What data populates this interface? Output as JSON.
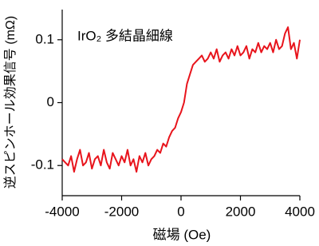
{
  "chart_data": {
    "type": "line",
    "annotation": "IrO₂ 多結晶細線",
    "xlabel": "磁場 (Oe)",
    "ylabel": "逆スピンホール効果信号 (mΩ)",
    "x": [
      -4000,
      -3900,
      -3800,
      -3700,
      -3600,
      -3500,
      -3400,
      -3300,
      -3200,
      -3100,
      -3000,
      -2900,
      -2800,
      -2700,
      -2600,
      -2500,
      -2400,
      -2300,
      -2200,
      -2100,
      -2000,
      -1900,
      -1800,
      -1700,
      -1600,
      -1500,
      -1400,
      -1300,
      -1200,
      -1100,
      -1000,
      -900,
      -800,
      -700,
      -600,
      -500,
      -400,
      -300,
      -200,
      -100,
      0,
      100,
      200,
      300,
      400,
      500,
      600,
      700,
      800,
      900,
      1000,
      1100,
      1200,
      1300,
      1400,
      1500,
      1600,
      1700,
      1800,
      1900,
      2000,
      2100,
      2200,
      2300,
      2400,
      2500,
      2600,
      2700,
      2800,
      2900,
      3000,
      3100,
      3200,
      3300,
      3400,
      3500,
      3600,
      3700,
      3800,
      3900,
      4000
    ],
    "series": [
      {
        "color": "#e8141c",
        "values": [
          -0.09,
          -0.095,
          -0.1,
          -0.085,
          -0.11,
          -0.09,
          -0.075,
          -0.1,
          -0.095,
          -0.08,
          -0.105,
          -0.09,
          -0.085,
          -0.1,
          -0.075,
          -0.095,
          -0.105,
          -0.08,
          -0.09,
          -0.1,
          -0.085,
          -0.095,
          -0.075,
          -0.1,
          -0.09,
          -0.11,
          -0.085,
          -0.095,
          -0.08,
          -0.1,
          -0.09,
          -0.085,
          -0.075,
          -0.08,
          -0.065,
          -0.07,
          -0.055,
          -0.045,
          -0.04,
          -0.025,
          -0.015,
          0.0,
          0.03,
          0.045,
          0.06,
          0.065,
          0.07,
          0.075,
          0.065,
          0.07,
          0.08,
          0.07,
          0.085,
          0.065,
          0.075,
          0.08,
          0.07,
          0.085,
          0.075,
          0.09,
          0.075,
          0.08,
          0.09,
          0.07,
          0.085,
          0.08,
          0.095,
          0.08,
          0.09,
          0.085,
          0.095,
          0.08,
          0.1,
          0.085,
          0.09,
          0.11,
          0.12,
          0.085,
          0.095,
          0.07,
          0.1
        ]
      }
    ],
    "xlim": [
      -4000,
      4000
    ],
    "xticks": [
      -4000,
      -2000,
      0,
      2000,
      4000
    ],
    "ylim": [
      -0.148,
      0.148
    ],
    "yticks": [
      -0.1,
      0,
      0.1
    ]
  }
}
